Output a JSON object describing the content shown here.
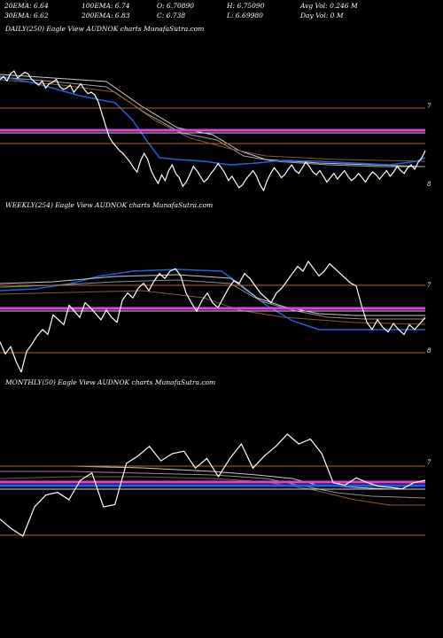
{
  "header": {
    "ema20": "20EMA: 6.64",
    "ema100": "100EMA: 6.74",
    "open": "O: 6.70890",
    "high": "H: 6.75090",
    "avgvol": "Avg Vol: 0.246  M",
    "ema30": "30EMA: 6.62",
    "ema200": "200EMA: 6.83",
    "close": "C: 6.738",
    "low": "L: 6.69980",
    "dayvol": "Day Vol: 0  M"
  },
  "colors": {
    "background": "#000000",
    "price": "#ffffff",
    "ma_blue": "#1f5fe0",
    "band_magenta": "#e040e0",
    "level_orange": "#b5651d",
    "ma_grey": "#c8c8c8"
  },
  "chart_data": [
    {
      "type": "line",
      "title": "DAILY(250) Eagle  View  AUDNOK charts MunafaSutra.com",
      "y_ticks": [
        "7",
        "8"
      ],
      "series": [
        {
          "values": [
            7.02,
            7.04,
            7.01,
            7.06,
            7.08,
            7.03,
            7.05,
            7.07,
            7.06,
            7.02,
            7.0,
            6.98,
            7.01,
            6.96,
            6.99,
            7.0,
            7.02,
            6.97,
            6.95,
            6.96,
            6.98,
            6.93,
            6.96,
            6.99,
            6.95,
            6.92,
            6.93,
            6.91,
            6.86,
            6.78,
            6.7,
            6.62,
            6.58,
            6.55,
            6.52,
            6.5,
            6.47,
            6.44,
            6.4,
            6.37,
            6.45,
            6.5,
            6.46,
            6.38,
            6.33,
            6.29,
            6.35,
            6.31,
            6.38,
            6.42,
            6.36,
            6.33,
            6.27,
            6.3,
            6.35,
            6.41,
            6.38,
            6.34,
            6.3,
            6.32,
            6.36,
            6.39,
            6.43,
            6.4,
            6.36,
            6.31,
            6.34,
            6.3,
            6.26,
            6.28,
            6.32,
            6.35,
            6.38,
            6.34,
            6.28,
            6.24,
            6.31,
            6.36,
            6.4,
            6.37,
            6.33,
            6.35,
            6.39,
            6.42,
            6.38,
            6.36,
            6.4,
            6.44,
            6.41,
            6.37,
            6.35,
            6.38,
            6.34,
            6.3,
            6.33,
            6.36,
            6.32,
            6.35,
            6.38,
            6.34,
            6.31,
            6.33,
            6.36,
            6.33,
            6.3,
            6.34,
            6.37,
            6.35,
            6.32,
            6.35,
            6.38,
            6.34,
            6.37,
            6.41,
            6.38,
            6.36,
            6.4,
            6.42,
            6.39,
            6.44,
            6.47,
            6.52
          ]
        }
      ]
    },
    {
      "type": "line",
      "title": "WEEKLY(254) Eagle  View  AUDNOK charts MunafaSutra.com",
      "y_ticks": [
        "7",
        "8"
      ],
      "series": [
        {
          "values": [
            6.3,
            6.2,
            6.26,
            6.14,
            6.05,
            6.22,
            6.28,
            6.35,
            6.4,
            6.36,
            6.52,
            6.48,
            6.44,
            6.6,
            6.55,
            6.5,
            6.62,
            6.58,
            6.53,
            6.48,
            6.56,
            6.5,
            6.46,
            6.64,
            6.7,
            6.66,
            6.74,
            6.78,
            6.72,
            6.8,
            6.86,
            6.82,
            6.88,
            6.9,
            6.84,
            6.7,
            6.62,
            6.55,
            6.64,
            6.7,
            6.62,
            6.58,
            6.66,
            6.74,
            6.8,
            6.78,
            6.86,
            6.82,
            6.76,
            6.7,
            6.66,
            6.62,
            6.7,
            6.74,
            6.8,
            6.86,
            6.92,
            6.88,
            6.96,
            6.9,
            6.84,
            6.88,
            6.94,
            6.9,
            6.86,
            6.82,
            6.78,
            6.76,
            6.6,
            6.46,
            6.4,
            6.48,
            6.42,
            6.38,
            6.45,
            6.4,
            6.36,
            6.44,
            6.4,
            6.45,
            6.5
          ]
        }
      ]
    },
    {
      "type": "line",
      "title": "MONTHLY(50) Eagle  View  AUDNOK charts MunafaSutra.com",
      "y_ticks": [
        "7"
      ],
      "series": [
        {
          "values": [
            6.2,
            6.12,
            6.06,
            6.3,
            6.4,
            6.42,
            6.36,
            6.52,
            6.58,
            6.3,
            6.32,
            6.66,
            6.72,
            6.8,
            6.68,
            6.74,
            6.76,
            6.62,
            6.7,
            6.55,
            6.7,
            6.82,
            6.62,
            6.72,
            6.8,
            6.9,
            6.82,
            6.86,
            6.74,
            6.5,
            6.48,
            6.54,
            6.5,
            6.47,
            6.46,
            6.45,
            6.5,
            6.52
          ]
        }
      ]
    }
  ]
}
